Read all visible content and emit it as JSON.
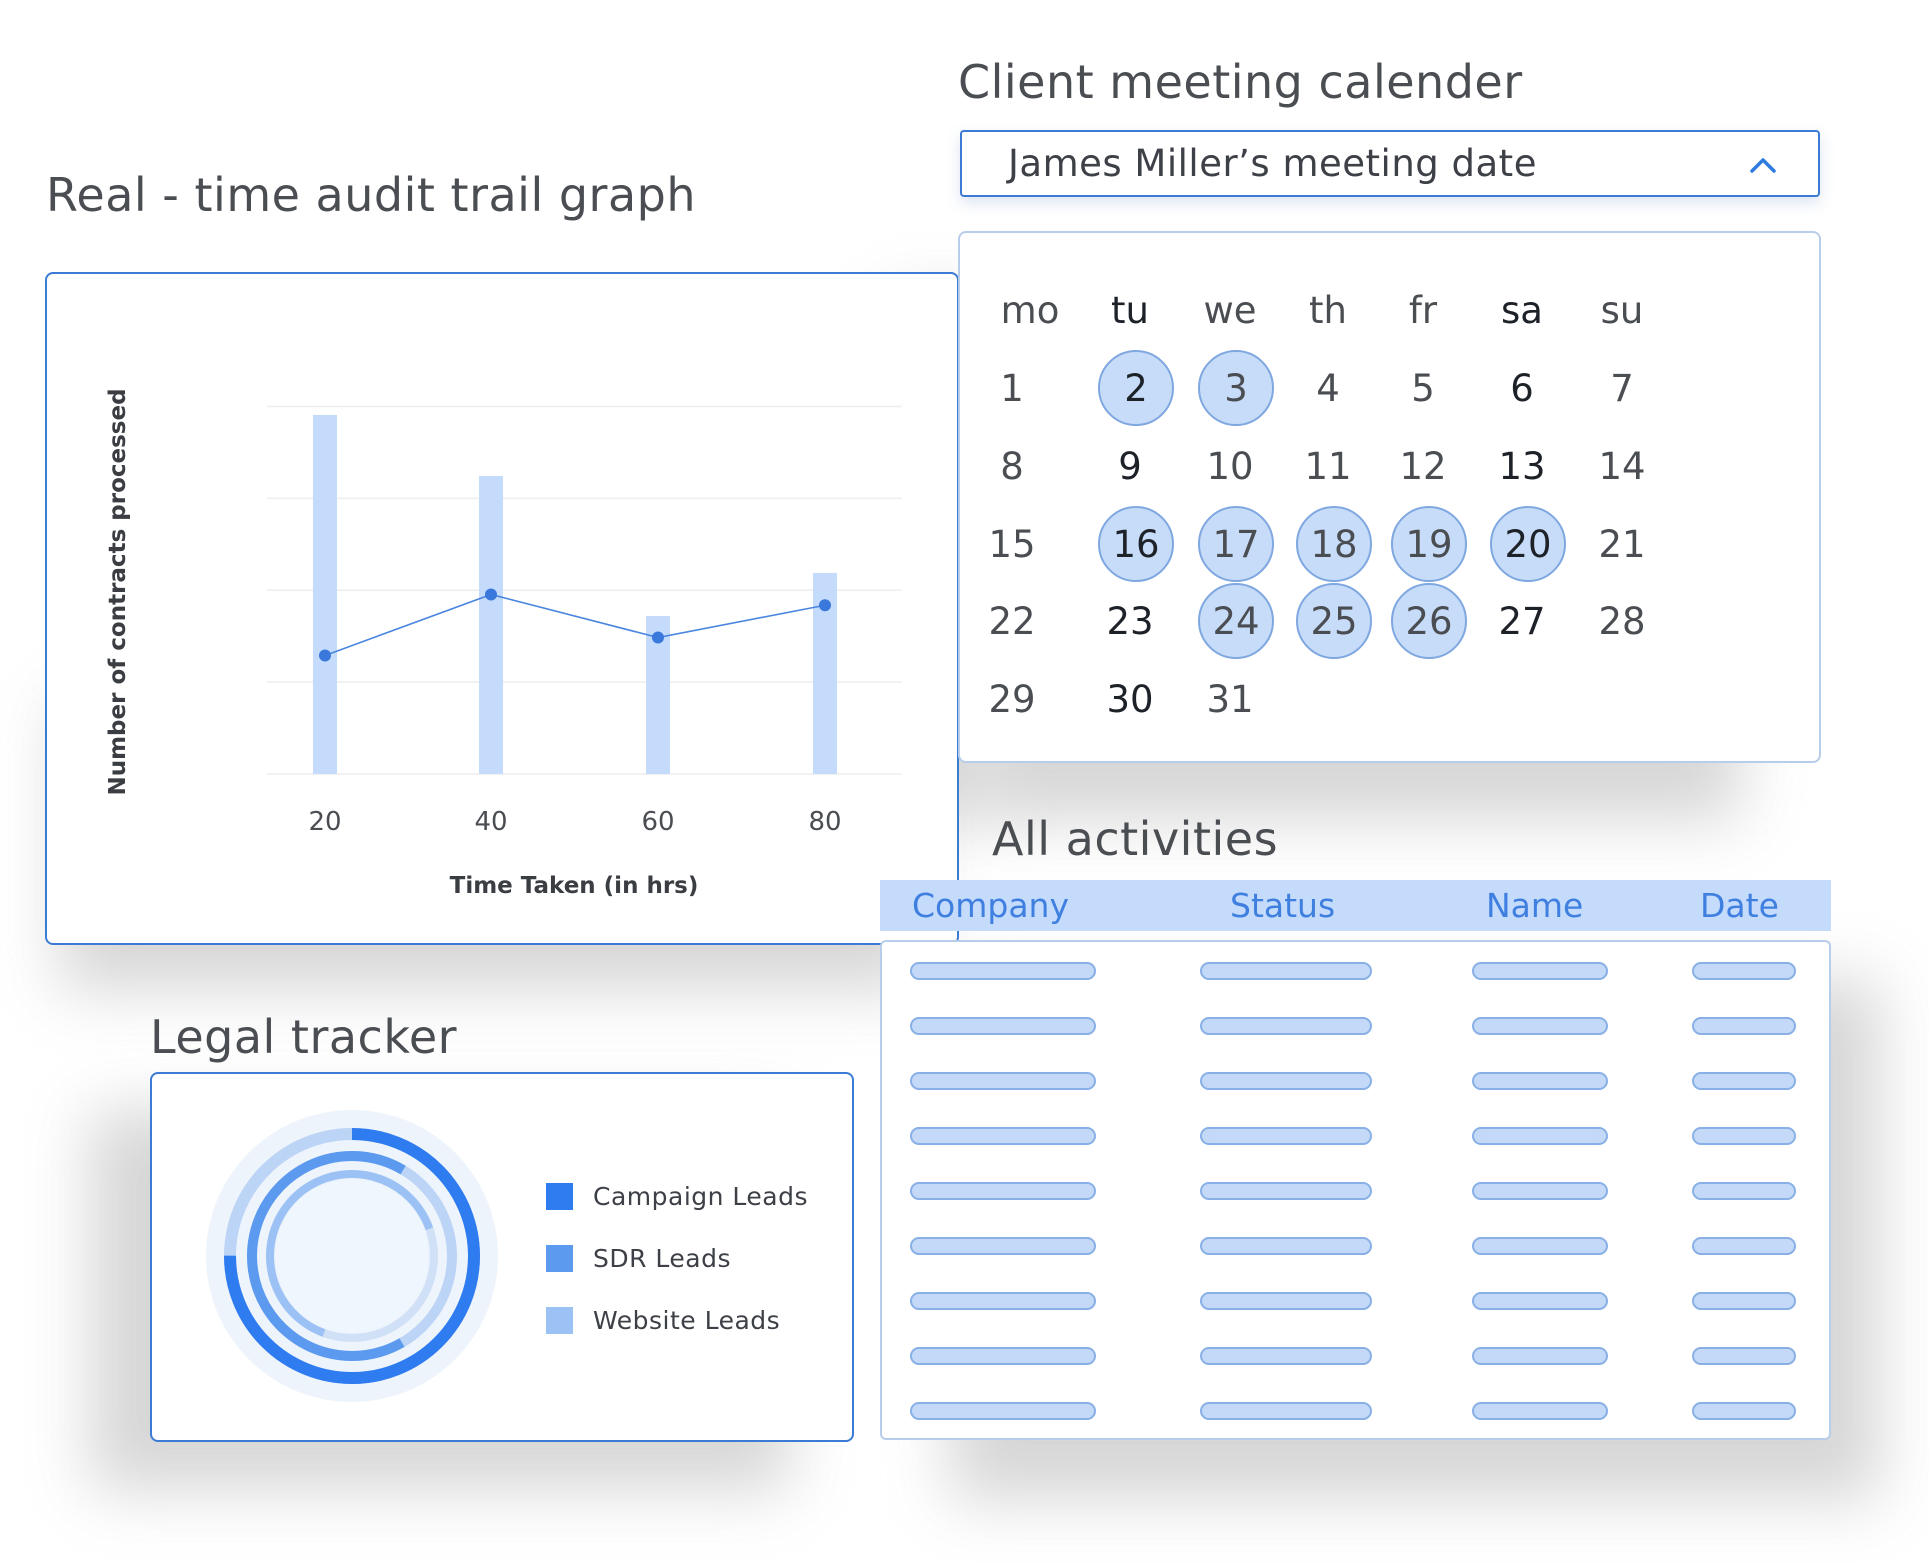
{
  "audit_graph": {
    "title": "Real - time audit trail graph"
  },
  "chart_data": {
    "type": "bar",
    "categories": [
      "20",
      "40",
      "60",
      "80"
    ],
    "bar_values": [
      100,
      83,
      44,
      56
    ],
    "line_values": [
      33,
      50,
      38,
      47
    ],
    "ylim": [
      0,
      110
    ],
    "xlabel": "Time Taken (in hrs)",
    "ylabel": "Number of contracts processed",
    "grid": true,
    "colors": {
      "bar": "#c5dbfb",
      "line": "#4a86e0",
      "point": "#3a78dc"
    }
  },
  "calendar": {
    "title": "Client meeting calender",
    "dropdown_label": "James Miller’s meeting date",
    "weekdays": [
      "mo",
      "tu",
      "we",
      "th",
      "fr",
      "sa",
      "su"
    ],
    "weeks": [
      [
        "1",
        "2",
        "3",
        "4",
        "5",
        "6",
        "7"
      ],
      [
        "8",
        "9",
        "10",
        "11",
        "12",
        "13",
        "14"
      ],
      [
        "15",
        "16",
        "17",
        "18",
        "19",
        "20",
        "21"
      ],
      [
        "22",
        "23",
        "24",
        "25",
        "26",
        "27",
        "28"
      ],
      [
        "29",
        "30",
        "31",
        "",
        "",
        "",
        ""
      ]
    ],
    "selected_days": [
      "2",
      "3",
      "16",
      "17",
      "18",
      "19",
      "20",
      "24",
      "25",
      "26"
    ],
    "highlight_color": "#c7dcf8"
  },
  "activities": {
    "title": "All activities",
    "columns": [
      "Company",
      "Status",
      "Name",
      "Date"
    ],
    "placeholder_row_count": 9
  },
  "legal_tracker": {
    "title": "Legal tracker",
    "legend": [
      {
        "label": "Campaign Leads",
        "color": "#2f7bf0"
      },
      {
        "label": "SDR Leads",
        "color": "#5c9af0"
      },
      {
        "label": "Website Leads",
        "color": "#9cc2f5"
      }
    ]
  }
}
